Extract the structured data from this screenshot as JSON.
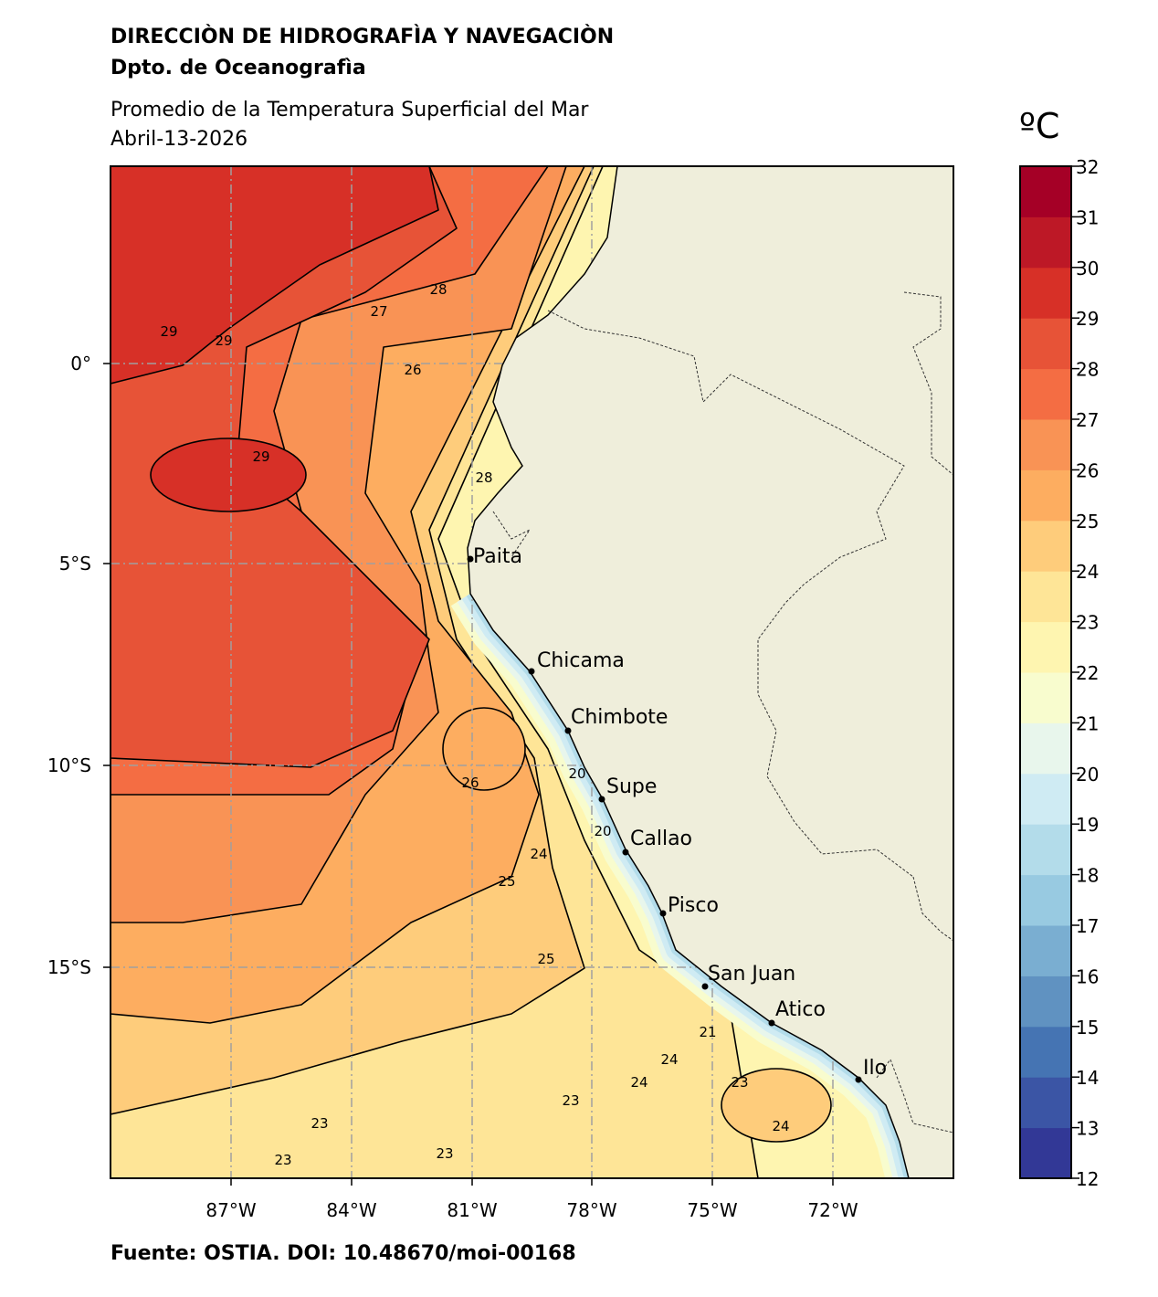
{
  "header": {
    "institution": "DIRECCIÒN DE HIDROGRAFÌA Y NAVEGACIÒN",
    "department": "Dpto. de Oceanografìa",
    "title": "Promedio de la Temperatura Superficial del Mar",
    "date": "Abril-13-2026"
  },
  "footer": {
    "source": "Fuente: OSTIA. DOI: 10.48670/moi-00168"
  },
  "map": {
    "type": "filled-contour sea surface temperature map",
    "lon_ticks": [
      "87°W",
      "84°W",
      "81°W",
      "78°W",
      "75°W",
      "72°W"
    ],
    "lat_ticks": [
      "0°",
      "5°S",
      "10°S",
      "15°S"
    ],
    "grid": true,
    "land_color": "#efeedb",
    "cities": [
      "Paita",
      "Chicama",
      "Chimbote",
      "Supe",
      "Callao",
      "Pisco",
      "San Juan",
      "Atico",
      "Ilo"
    ],
    "contour_labels": [
      "28",
      "27",
      "29",
      "29",
      "26",
      "29",
      "28",
      "26",
      "24",
      "25",
      "25",
      "20",
      "20",
      "21",
      "24",
      "24",
      "23",
      "23",
      "23",
      "24",
      "23",
      "23"
    ]
  },
  "colorbar": {
    "unit": "ºC",
    "range": [
      12,
      32
    ],
    "ticks": [
      "32",
      "31",
      "30",
      "29",
      "28",
      "27",
      "26",
      "25",
      "24",
      "23",
      "22",
      "21",
      "20",
      "19",
      "18",
      "17",
      "16",
      "15",
      "14",
      "13",
      "12"
    ],
    "colors": [
      "#323896",
      "#3b55a5",
      "#4574b3",
      "#6092c1",
      "#7aaed1",
      "#98cae1",
      "#b3dcea",
      "#cfebf3",
      "#e8f6ec",
      "#f8fcce",
      "#fef5b0",
      "#fee597",
      "#fecc7b",
      "#fdad60",
      "#f99355",
      "#f46d43",
      "#e75337",
      "#d73027",
      "#bd1826",
      "#a50026"
    ]
  }
}
